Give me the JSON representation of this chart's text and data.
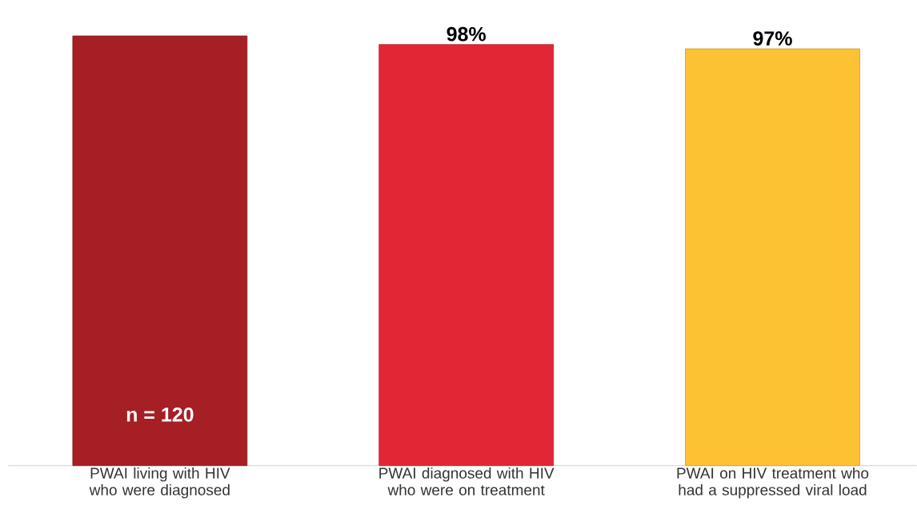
{
  "chart_data": {
    "type": "bar",
    "categories": [
      "PWAI living with HIV who were diagnosed",
      "PWAI diagnosed with HIV who were on treatment",
      "PWAI on HIV treatment who had a suppressed viral load"
    ],
    "values": [
      100,
      98,
      97
    ],
    "colors": [
      "#a51f25",
      "#e32636",
      "#fcc234"
    ],
    "value_labels": [
      null,
      "98%",
      "97%"
    ],
    "annotations": [
      "n = 120"
    ]
  }
}
